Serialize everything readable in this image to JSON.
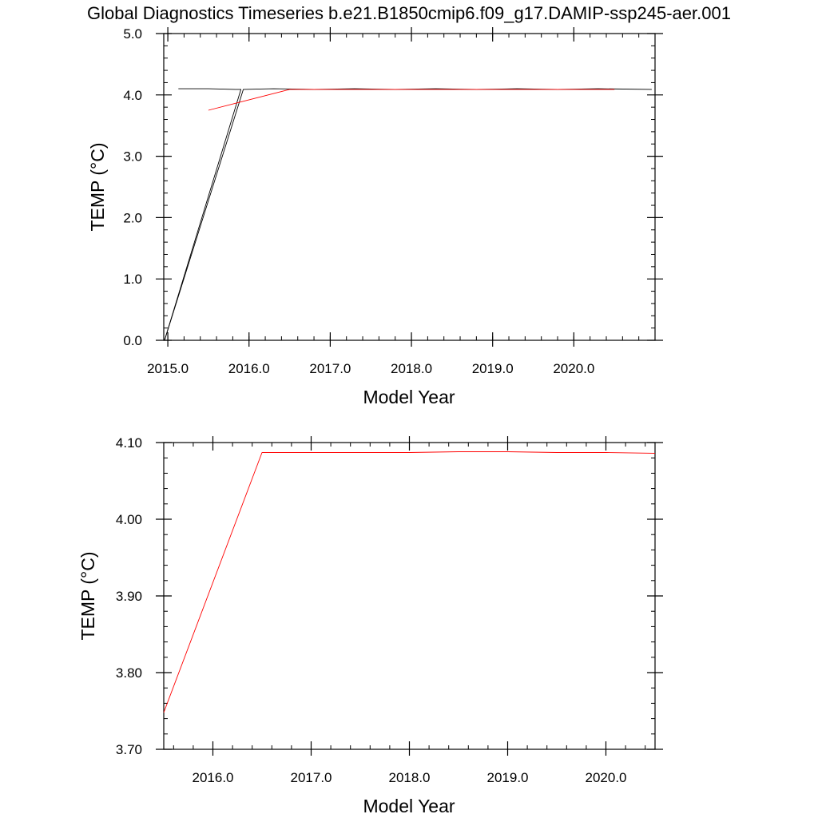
{
  "figure_title": "Global Diagnostics Timeseries b.e21.B1850cmip6.f09_g17.DAMIP-ssp245-aer.001",
  "chart_data": [
    {
      "type": "line",
      "xlabel": "Model Year",
      "ylabel": "TEMP (°C)",
      "xlim": [
        2014.95,
        2021.0
      ],
      "ylim": [
        0.0,
        5.0
      ],
      "xticks": [
        2015.0,
        2016.0,
        2017.0,
        2018.0,
        2019.0,
        2020.0
      ],
      "xtick_labels": [
        "2015.0",
        "2016.0",
        "2017.0",
        "2018.0",
        "2019.0",
        "2020.0"
      ],
      "yticks": [
        0.0,
        1.0,
        2.0,
        3.0,
        4.0,
        5.0
      ],
      "ytick_labels": [
        "0.0",
        "1.0",
        "2.0",
        "3.0",
        "4.0",
        "5.0"
      ],
      "grid": false,
      "series": [
        {
          "color": "#000000",
          "x": [
            2015.13,
            2015.5,
            2015.83,
            2015.9,
            2014.96
          ],
          "y": [
            4.1,
            4.1,
            4.09,
            4.09,
            0.0
          ]
        },
        {
          "color": "#000000",
          "x": [
            2014.96,
            2015.93,
            2016.3,
            2016.8,
            2017.3,
            2017.8,
            2018.3,
            2018.8,
            2019.3,
            2019.8,
            2020.3,
            2020.96
          ],
          "y": [
            0.0,
            4.09,
            4.1,
            4.09,
            4.1,
            4.09,
            4.1,
            4.09,
            4.1,
            4.09,
            4.1,
            4.09
          ]
        },
        {
          "color": "#ff0000",
          "x": [
            2015.5,
            2016.5,
            2017.0,
            2017.5,
            2018.0,
            2018.5,
            2019.0,
            2019.5,
            2020.0,
            2020.5
          ],
          "y": [
            3.75,
            4.09,
            4.09,
            4.09,
            4.09,
            4.09,
            4.09,
            4.09,
            4.09,
            4.09
          ]
        }
      ]
    },
    {
      "type": "line",
      "xlabel": "Model Year",
      "ylabel": "TEMP (°C)",
      "xlim": [
        2015.5,
        2020.5
      ],
      "ylim": [
        3.7,
        4.1
      ],
      "xticks": [
        2016.0,
        2017.0,
        2018.0,
        2019.0,
        2020.0
      ],
      "xtick_labels": [
        "2016.0",
        "2017.0",
        "2018.0",
        "2019.0",
        "2020.0"
      ],
      "yticks": [
        3.7,
        3.8,
        3.9,
        4.0,
        4.1
      ],
      "ytick_labels": [
        "3.70",
        "3.80",
        "3.90",
        "4.00",
        "4.10"
      ],
      "grid": false,
      "series": [
        {
          "color": "#ff0000",
          "x": [
            2015.5,
            2016.5,
            2017.0,
            2017.5,
            2018.0,
            2018.5,
            2019.0,
            2019.5,
            2020.0,
            2020.5
          ],
          "y": [
            3.748,
            4.087,
            4.087,
            4.087,
            4.087,
            4.088,
            4.088,
            4.087,
            4.087,
            4.086
          ]
        }
      ]
    }
  ]
}
